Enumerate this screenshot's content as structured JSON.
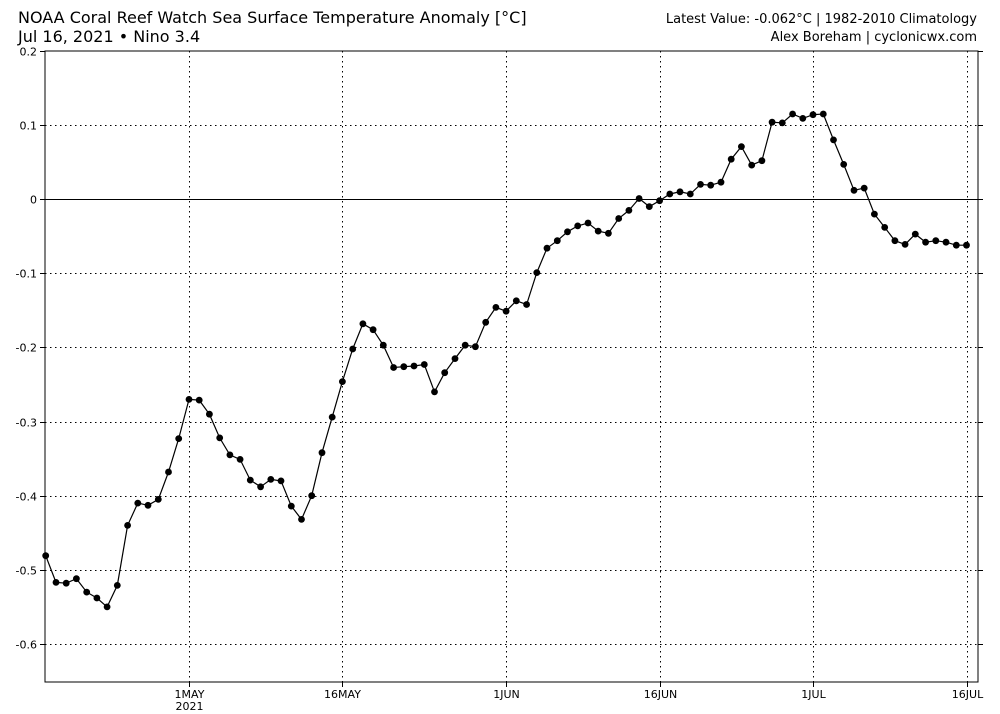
{
  "header": {
    "title": "NOAA Coral Reef Watch Sea Surface Temperature Anomaly [°C]",
    "subtitle": "Jul 16, 2021 • Nino 3.4",
    "latest": "Latest Value: -0.062°C | 1982-2010 Climatology",
    "credit": "Alex Boreham | cyclonicwx.com"
  },
  "chart_data": {
    "type": "line",
    "title": "NOAA Coral Reef Watch Sea Surface Temperature Anomaly [°C]",
    "xlabel": "",
    "ylabel": "",
    "ylim": [
      -0.65,
      0.2
    ],
    "xlim": [
      "2021-04-16",
      "2021-07-16"
    ],
    "grid": true,
    "zero_line": true,
    "yticks": [
      0.2,
      0.1,
      0,
      -0.1,
      -0.2,
      -0.3,
      -0.4,
      -0.5,
      -0.6
    ],
    "ytick_labels": [
      "0.2",
      "0.1",
      "0",
      "-0.1",
      "-0.2",
      "-0.3",
      "-0.4",
      "-0.5",
      "-0.6"
    ],
    "xticks": [
      {
        "date": "2021-05-01",
        "label": "1MAY",
        "sublabel": "2021"
      },
      {
        "date": "2021-05-16",
        "label": "16MAY",
        "sublabel": ""
      },
      {
        "date": "2021-06-01",
        "label": "1JUN",
        "sublabel": ""
      },
      {
        "date": "2021-06-16",
        "label": "16JUN",
        "sublabel": ""
      },
      {
        "date": "2021-07-01",
        "label": "1JUL",
        "sublabel": ""
      },
      {
        "date": "2021-07-16",
        "label": "16JUL",
        "sublabel": ""
      }
    ],
    "series": [
      {
        "name": "",
        "color": "#000000",
        "start_date": "2021-04-17",
        "dates": [
          "2021-04-17",
          "2021-04-18",
          "2021-04-19",
          "2021-04-20",
          "2021-04-21",
          "2021-04-22",
          "2021-04-23",
          "2021-04-24",
          "2021-04-25",
          "2021-04-26",
          "2021-04-27",
          "2021-04-28",
          "2021-04-29",
          "2021-04-30",
          "2021-05-01",
          "2021-05-02",
          "2021-05-03",
          "2021-05-04",
          "2021-05-05",
          "2021-05-06",
          "2021-05-07",
          "2021-05-08",
          "2021-05-09",
          "2021-05-10",
          "2021-05-11",
          "2021-05-12",
          "2021-05-13",
          "2021-05-14",
          "2021-05-15",
          "2021-05-16",
          "2021-05-17",
          "2021-05-18",
          "2021-05-19",
          "2021-05-20",
          "2021-05-21",
          "2021-05-22",
          "2021-05-23",
          "2021-05-24",
          "2021-05-25",
          "2021-05-26",
          "2021-05-27",
          "2021-05-28",
          "2021-05-29",
          "2021-05-30",
          "2021-05-31",
          "2021-06-01",
          "2021-06-02",
          "2021-06-03",
          "2021-06-04",
          "2021-06-05",
          "2021-06-06",
          "2021-06-07",
          "2021-06-08",
          "2021-06-09",
          "2021-06-10",
          "2021-06-11",
          "2021-06-12",
          "2021-06-13",
          "2021-06-14",
          "2021-06-15",
          "2021-06-16",
          "2021-06-17",
          "2021-06-18",
          "2021-06-19",
          "2021-06-20",
          "2021-06-21",
          "2021-06-22",
          "2021-06-23",
          "2021-06-24",
          "2021-06-25",
          "2021-06-26",
          "2021-06-27",
          "2021-06-28",
          "2021-06-29",
          "2021-06-30",
          "2021-07-01",
          "2021-07-02",
          "2021-07-03",
          "2021-07-04",
          "2021-07-05",
          "2021-07-06",
          "2021-07-07",
          "2021-07-08",
          "2021-07-09",
          "2021-07-10",
          "2021-07-11",
          "2021-07-12",
          "2021-07-13",
          "2021-07-14",
          "2021-07-15",
          "2021-07-16"
        ],
        "values": [
          -0.481,
          -0.517,
          -0.518,
          -0.512,
          -0.53,
          -0.538,
          -0.55,
          -0.521,
          -0.44,
          -0.41,
          -0.413,
          -0.405,
          -0.368,
          -0.323,
          -0.27,
          -0.271,
          -0.29,
          -0.322,
          -0.345,
          -0.351,
          -0.379,
          -0.388,
          -0.378,
          -0.38,
          -0.414,
          -0.432,
          -0.4,
          -0.342,
          -0.294,
          -0.246,
          -0.202,
          -0.168,
          -0.176,
          -0.197,
          -0.227,
          -0.226,
          -0.225,
          -0.223,
          -0.26,
          -0.234,
          -0.215,
          -0.197,
          -0.199,
          -0.166,
          -0.146,
          -0.151,
          -0.137,
          -0.142,
          -0.099,
          -0.066,
          -0.056,
          -0.044,
          -0.036,
          -0.032,
          -0.043,
          -0.046,
          -0.026,
          -0.015,
          0.001,
          -0.01,
          -0.002,
          0.007,
          0.01,
          0.007,
          0.02,
          0.019,
          0.023,
          0.054,
          0.071,
          0.046,
          0.052,
          0.104,
          0.103,
          0.115,
          0.109,
          0.114,
          0.115,
          0.08,
          0.047,
          0.012,
          0.015,
          -0.02,
          -0.038,
          -0.056,
          -0.061,
          -0.047,
          -0.058,
          -0.056,
          -0.058,
          -0.062,
          -0.062
        ]
      }
    ]
  }
}
